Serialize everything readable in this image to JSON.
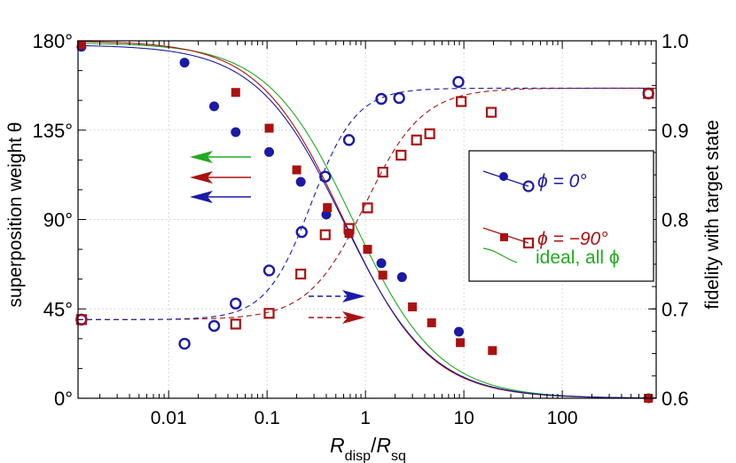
{
  "chart_data": {
    "type": "scatter",
    "title": "",
    "xlabel": {
      "main": "R",
      "sub1": "disp",
      "slash": "/",
      "main2": "R",
      "sub2": "sq"
    },
    "ylabel_left": "superposition weight θ",
    "ylabel_right": "fidelity with target state",
    "xscale": "log",
    "xlim": [
      0.0012,
      900
    ],
    "ylim_left": [
      0,
      180
    ],
    "ylim_right": [
      0.6,
      1.0
    ],
    "x_ticks": [
      {
        "value": 0.01,
        "label": "0.01"
      },
      {
        "value": 0.1,
        "label": "0.1"
      },
      {
        "value": 1,
        "label": "1"
      },
      {
        "value": 10,
        "label": "10"
      },
      {
        "value": 100,
        "label": "100"
      }
    ],
    "y_left_ticks": [
      {
        "value": 0,
        "label": "0°"
      },
      {
        "value": 45,
        "label": "45°"
      },
      {
        "value": 90,
        "label": "90°"
      },
      {
        "value": 135,
        "label": "135°"
      },
      {
        "value": 180,
        "label": "180°"
      }
    ],
    "y_right_ticks": [
      {
        "value": 0.6,
        "label": "0.6"
      },
      {
        "value": 0.7,
        "label": "0.7"
      },
      {
        "value": 0.8,
        "label": "0.8"
      },
      {
        "value": 0.9,
        "label": "0.9"
      },
      {
        "value": 1.0,
        "label": "1.0"
      }
    ],
    "grid": true,
    "legend": {
      "position": "center-right",
      "entries": [
        {
          "label": "ϕ = 0°",
          "color": "#1a1aa6",
          "style": "circles"
        },
        {
          "label": "ϕ = −90°",
          "color": "#aa1111",
          "style": "squares"
        },
        {
          "label": "ideal, all ϕ",
          "color": "#22aa22",
          "style": "line"
        }
      ]
    },
    "colors": {
      "blue": "#1a1aa6",
      "red": "#aa1111",
      "green": "#22aa22"
    },
    "theory_curves": {
      "theta_ideal": {
        "color": "#22aa22",
        "theta_max": 179,
        "center": 0.75,
        "slope": 1.0
      },
      "theta_phi0": {
        "color": "#1a1aa6",
        "theta_max": 178,
        "center": 0.6,
        "slope": 0.98
      },
      "theta_phi90": {
        "color": "#aa1111",
        "theta_max": 180,
        "center": 0.6,
        "slope": 1.0
      },
      "fidelity_phi0": {
        "color": "#1a1aa6",
        "f_low": 0.688,
        "f_high": 0.947,
        "center": 0.28,
        "slope": 1.9
      },
      "fidelity_phi90": {
        "color": "#aa1111",
        "f_low": 0.688,
        "f_high": 0.947,
        "center": 1.0,
        "slope": 1.5
      }
    },
    "series": [
      {
        "name": "theta_phi0_data",
        "axis": "left",
        "marker": "filled-circle",
        "color": "#1a1aa6",
        "x": [
          0.0013,
          0.0145,
          0.029,
          0.048,
          0.105,
          0.22,
          0.4,
          0.68,
          1.45,
          2.35,
          8.9,
          750
        ],
        "y": [
          177,
          169,
          147,
          134,
          124,
          109,
          92.5,
          83,
          68,
          61,
          33.5,
          0
        ]
      },
      {
        "name": "theta_phi90_data",
        "axis": "left",
        "marker": "filled-square",
        "color": "#aa1111",
        "x": [
          0.0013,
          0.048,
          0.105,
          0.2,
          0.41,
          0.68,
          1.05,
          1.5,
          3.0,
          4.7,
          9.2,
          19.5,
          750
        ],
        "y": [
          178,
          154,
          136,
          115,
          96,
          83,
          75,
          62,
          46,
          38,
          28,
          24,
          0
        ]
      },
      {
        "name": "fidelity_phi0_data",
        "axis": "right",
        "marker": "open-circle",
        "color": "#1a1aa6",
        "x": [
          0.0013,
          0.0145,
          0.029,
          0.048,
          0.105,
          0.225,
          0.39,
          0.68,
          1.45,
          2.2,
          8.8,
          750
        ],
        "y": [
          0.688,
          0.661,
          0.681,
          0.706,
          0.743,
          0.786,
          0.848,
          0.889,
          0.935,
          0.936,
          0.954,
          0.941
        ]
      },
      {
        "name": "fidelity_phi90_data",
        "axis": "right",
        "marker": "open-square",
        "color": "#aa1111",
        "x": [
          0.0013,
          0.048,
          0.105,
          0.22,
          0.39,
          0.68,
          1.05,
          1.5,
          2.3,
          3.3,
          4.5,
          9.4,
          19,
          750
        ],
        "y": [
          0.688,
          0.683,
          0.695,
          0.739,
          0.783,
          0.79,
          0.813,
          0.853,
          0.872,
          0.889,
          0.896,
          0.932,
          0.92,
          0.941
        ]
      }
    ],
    "annotations": {
      "axis_arrows_left": [
        {
          "color": "#22aa22",
          "style": "solid",
          "direction": "left"
        },
        {
          "color": "#aa1111",
          "style": "solid",
          "direction": "left"
        },
        {
          "color": "#1a1aa6",
          "style": "solid",
          "direction": "left"
        }
      ],
      "axis_arrows_right": [
        {
          "color": "#1a1aa6",
          "style": "dashed",
          "direction": "right"
        },
        {
          "color": "#aa1111",
          "style": "dashed",
          "direction": "right"
        }
      ]
    }
  }
}
